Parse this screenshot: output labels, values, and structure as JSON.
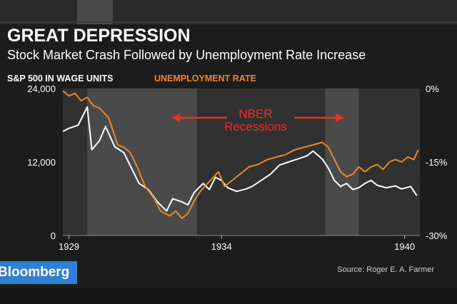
{
  "header": {
    "headline": "GREAT DEPRESSION",
    "subhead": "Stock Market Crash Followed by Unemployment Rate Increase"
  },
  "legend": {
    "left_label": "S&P 500 IN WAGE UNITS",
    "right_label": "UNEMPLOYMENT RATE"
  },
  "brand": {
    "name": "Bloomberg"
  },
  "source": "Source: Roger E. A. Farmer",
  "colors": {
    "sp500": "#ffffff",
    "unemployment": "#e8882a",
    "recession_band": "#4a4a4a",
    "plot_bg": "#303030",
    "annotation": "#e8322a",
    "brand": "#2f7fd6"
  },
  "chart_data": {
    "type": "line",
    "x_ticks": [
      "1929",
      "1934",
      "1940"
    ],
    "x_range": [
      1928.8,
      1940.5
    ],
    "y_left": {
      "label": "S&P 500 IN WAGE UNITS",
      "ticks": [
        "24,000",
        "12,000",
        "0"
      ],
      "range": [
        0,
        24000
      ]
    },
    "y_right": {
      "label": "UNEMPLOYMENT RATE",
      "ticks": [
        "0%",
        "-15%",
        "-30%"
      ],
      "range": [
        -30,
        0
      ]
    },
    "recessions": [
      {
        "start": 1929.6,
        "end": 1933.2
      },
      {
        "start": 1937.4,
        "end": 1938.5
      }
    ],
    "annotation": {
      "text_line1": "NBER",
      "text_line2": "Recessions"
    },
    "series": [
      {
        "name": "S&P 500 IN WAGE UNITS",
        "axis": "left",
        "points": [
          [
            1928.8,
            17000
          ],
          [
            1929.0,
            17500
          ],
          [
            1929.3,
            18000
          ],
          [
            1929.6,
            21000
          ],
          [
            1929.75,
            14000
          ],
          [
            1930.0,
            15500
          ],
          [
            1930.2,
            17800
          ],
          [
            1930.5,
            14500
          ],
          [
            1930.8,
            13500
          ],
          [
            1931.0,
            11500
          ],
          [
            1931.3,
            8500
          ],
          [
            1931.6,
            7500
          ],
          [
            1931.9,
            5500
          ],
          [
            1932.2,
            4000
          ],
          [
            1932.4,
            6000
          ],
          [
            1932.7,
            5500
          ],
          [
            1932.9,
            5000
          ],
          [
            1933.1,
            7000
          ],
          [
            1933.4,
            8500
          ],
          [
            1933.6,
            7500
          ],
          [
            1933.8,
            9500
          ],
          [
            1934.0,
            9000
          ],
          [
            1934.2,
            7800
          ],
          [
            1934.5,
            7200
          ],
          [
            1934.8,
            7600
          ],
          [
            1935.0,
            8000
          ],
          [
            1935.3,
            9000
          ],
          [
            1935.6,
            10000
          ],
          [
            1935.9,
            11500
          ],
          [
            1936.2,
            12000
          ],
          [
            1936.5,
            12500
          ],
          [
            1936.8,
            13000
          ],
          [
            1937.0,
            13800
          ],
          [
            1937.3,
            12500
          ],
          [
            1937.5,
            11000
          ],
          [
            1937.7,
            9000
          ],
          [
            1937.9,
            8000
          ],
          [
            1938.1,
            8500
          ],
          [
            1938.3,
            7500
          ],
          [
            1938.5,
            7800
          ],
          [
            1938.7,
            8500
          ],
          [
            1938.9,
            9000
          ],
          [
            1939.1,
            8200
          ],
          [
            1939.4,
            7800
          ],
          [
            1939.7,
            8100
          ],
          [
            1939.9,
            7600
          ],
          [
            1940.2,
            8000
          ],
          [
            1940.4,
            6500
          ]
        ]
      },
      {
        "name": "UNEMPLOYMENT RATE",
        "axis": "right",
        "points": [
          [
            1928.8,
            -0.5
          ],
          [
            1929.0,
            -1.5
          ],
          [
            1929.2,
            -1.0
          ],
          [
            1929.4,
            -2.5
          ],
          [
            1929.6,
            -1.8
          ],
          [
            1929.8,
            -3.5
          ],
          [
            1930.0,
            -4.0
          ],
          [
            1930.3,
            -6.0
          ],
          [
            1930.6,
            -11.5
          ],
          [
            1930.8,
            -12.0
          ],
          [
            1931.0,
            -13.0
          ],
          [
            1931.2,
            -15.5
          ],
          [
            1931.5,
            -20.0
          ],
          [
            1931.8,
            -22.5
          ],
          [
            1932.0,
            -25.0
          ],
          [
            1932.3,
            -26.0
          ],
          [
            1932.5,
            -25.0
          ],
          [
            1932.7,
            -26.5
          ],
          [
            1932.9,
            -25.5
          ],
          [
            1933.1,
            -23.0
          ],
          [
            1933.3,
            -21.0
          ],
          [
            1933.6,
            -19.0
          ],
          [
            1933.9,
            -17.0
          ],
          [
            1934.1,
            -20.0
          ],
          [
            1934.3,
            -19.0
          ],
          [
            1934.6,
            -17.5
          ],
          [
            1934.9,
            -16.0
          ],
          [
            1935.2,
            -15.5
          ],
          [
            1935.5,
            -14.5
          ],
          [
            1935.8,
            -14.0
          ],
          [
            1936.1,
            -13.5
          ],
          [
            1936.4,
            -12.5
          ],
          [
            1936.7,
            -12.0
          ],
          [
            1937.0,
            -11.5
          ],
          [
            1937.3,
            -11.0
          ],
          [
            1937.5,
            -12.0
          ],
          [
            1937.7,
            -14.5
          ],
          [
            1937.9,
            -17.0
          ],
          [
            1938.1,
            -18.0
          ],
          [
            1938.3,
            -17.5
          ],
          [
            1938.5,
            -16.0
          ],
          [
            1938.7,
            -17.0
          ],
          [
            1938.9,
            -16.0
          ],
          [
            1939.1,
            -15.5
          ],
          [
            1939.3,
            -16.5
          ],
          [
            1939.5,
            -15.0
          ],
          [
            1939.7,
            -14.5
          ],
          [
            1939.9,
            -15.0
          ],
          [
            1940.1,
            -14.0
          ],
          [
            1940.3,
            -14.5
          ],
          [
            1940.45,
            -12.5
          ]
        ]
      }
    ]
  }
}
